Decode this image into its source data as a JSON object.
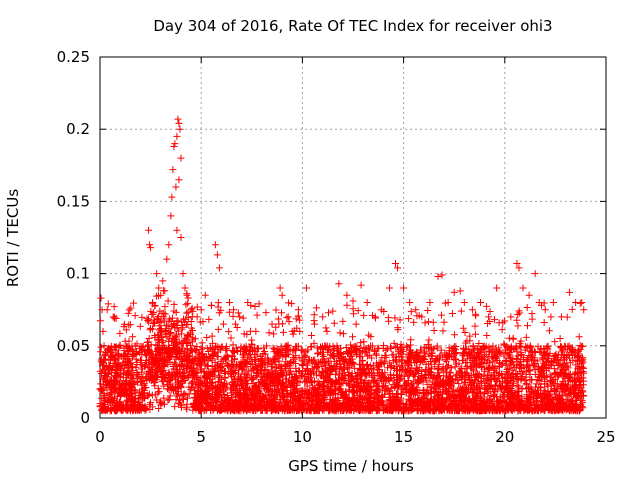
{
  "chart_data": {
    "type": "scatter",
    "title": "Day 304 of 2016, Rate Of TEC Index for receiver ohi3",
    "xlabel": "GPS time / hours",
    "ylabel": "ROTI / TECUs",
    "xlim": [
      0,
      25
    ],
    "ylim": [
      0,
      0.25
    ],
    "xticks": [
      0,
      5,
      10,
      15,
      20,
      25
    ],
    "xtick_labels": [
      "0",
      "5",
      "10",
      "15",
      "20",
      "25"
    ],
    "yticks": [
      0,
      0.05,
      0.1,
      0.15,
      0.2,
      0.25
    ],
    "ytick_labels": [
      "0",
      "0.05",
      "0.1",
      "0.15",
      "0.2",
      "0.25"
    ],
    "grid": true,
    "marker": "+",
    "series_color": "#ff0000",
    "x_range_hours": [
      0.0,
      23.9
    ],
    "description_of_density": "dense cloud between 0.005 and 0.05, frequent spikes to 0.08-0.10",
    "series": [
      {
        "name": "ROTI",
        "points": [
          [
            0.0,
            0.02
          ],
          [
            0.05,
            0.083
          ],
          [
            0.1,
            0.075
          ],
          [
            0.15,
            0.06
          ],
          [
            0.2,
            0.05
          ],
          [
            0.3,
            0.045
          ],
          [
            0.4,
            0.03
          ],
          [
            0.7,
            0.07
          ],
          [
            0.8,
            0.069
          ],
          [
            1.3,
            0.061
          ],
          [
            1.0,
            0.05
          ],
          [
            1.8,
            0.045
          ],
          [
            2.2,
            0.046
          ],
          [
            2.4,
            0.13
          ],
          [
            2.45,
            0.12
          ],
          [
            2.5,
            0.118
          ],
          [
            2.6,
            0.08
          ],
          [
            2.8,
            0.1
          ],
          [
            2.9,
            0.09
          ],
          [
            3.0,
            0.085
          ],
          [
            3.1,
            0.095
          ],
          [
            3.2,
            0.088
          ],
          [
            3.3,
            0.11
          ],
          [
            3.4,
            0.12
          ],
          [
            3.5,
            0.14
          ],
          [
            3.55,
            0.153
          ],
          [
            3.6,
            0.172
          ],
          [
            3.65,
            0.188
          ],
          [
            3.7,
            0.19
          ],
          [
            3.75,
            0.16
          ],
          [
            3.8,
            0.195
          ],
          [
            3.85,
            0.207
          ],
          [
            3.9,
            0.204
          ],
          [
            3.95,
            0.2
          ],
          [
            4.0,
            0.18
          ],
          [
            3.9,
            0.165
          ],
          [
            3.8,
            0.13
          ],
          [
            4.0,
            0.125
          ],
          [
            4.1,
            0.1
          ],
          [
            4.2,
            0.09
          ],
          [
            4.3,
            0.085
          ],
          [
            4.5,
            0.075
          ],
          [
            4.8,
            0.07
          ],
          [
            5.0,
            0.075
          ],
          [
            5.2,
            0.085
          ],
          [
            5.5,
            0.078
          ],
          [
            5.7,
            0.12
          ],
          [
            5.8,
            0.113
          ],
          [
            5.9,
            0.104
          ],
          [
            6.1,
            0.065
          ],
          [
            6.4,
            0.08
          ],
          [
            6.6,
            0.075
          ],
          [
            6.9,
            0.07
          ],
          [
            7.3,
            0.08
          ],
          [
            7.7,
            0.06
          ],
          [
            8.2,
            0.073
          ],
          [
            8.5,
            0.065
          ],
          [
            8.9,
            0.09
          ],
          [
            9.0,
            0.085
          ],
          [
            9.3,
            0.07
          ],
          [
            9.5,
            0.06
          ],
          [
            9.8,
            0.075
          ],
          [
            10.2,
            0.09
          ],
          [
            10.6,
            0.065
          ],
          [
            11.0,
            0.07
          ],
          [
            11.5,
            0.074
          ],
          [
            11.8,
            0.093
          ],
          [
            12.2,
            0.085
          ],
          [
            12.5,
            0.081
          ],
          [
            12.9,
            0.092
          ],
          [
            13.2,
            0.08
          ],
          [
            13.6,
            0.07
          ],
          [
            13.9,
            0.075
          ],
          [
            14.3,
            0.09
          ],
          [
            14.6,
            0.107
          ],
          [
            14.7,
            0.104
          ],
          [
            15.0,
            0.09
          ],
          [
            15.3,
            0.08
          ],
          [
            15.6,
            0.075
          ],
          [
            15.9,
            0.07
          ],
          [
            16.3,
            0.08
          ],
          [
            16.7,
            0.098
          ],
          [
            16.9,
            0.099
          ],
          [
            17.2,
            0.08
          ],
          [
            17.5,
            0.087
          ],
          [
            17.8,
            0.088
          ],
          [
            18.0,
            0.08
          ],
          [
            18.4,
            0.075
          ],
          [
            18.8,
            0.08
          ],
          [
            19.2,
            0.07
          ],
          [
            19.6,
            0.09
          ],
          [
            19.9,
            0.066
          ],
          [
            20.3,
            0.07
          ],
          [
            20.6,
            0.107
          ],
          [
            20.7,
            0.104
          ],
          [
            20.9,
            0.09
          ],
          [
            21.2,
            0.085
          ],
          [
            21.5,
            0.1
          ],
          [
            21.7,
            0.08
          ],
          [
            22.0,
            0.075
          ],
          [
            22.4,
            0.08
          ],
          [
            22.8,
            0.07
          ],
          [
            23.2,
            0.087
          ],
          [
            23.5,
            0.08
          ],
          [
            23.8,
            0.08
          ],
          [
            23.9,
            0.075
          ]
        ]
      }
    ]
  }
}
